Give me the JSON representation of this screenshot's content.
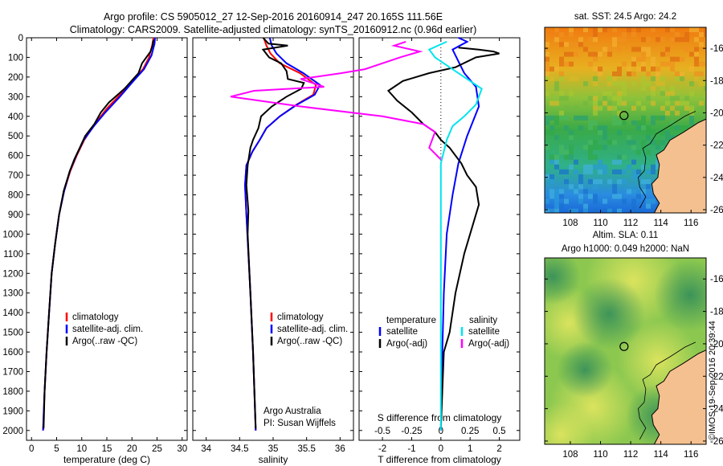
{
  "header": {
    "line1": "Argo profile: CS 5905012_27 12-Sep-2016 20160914_247 20.165S 111.56E",
    "line2": "Climatology: CARS2009. Satellite-adjusted climatology: synTS_20160912.nc (0.96d earlier)"
  },
  "footer": {
    "stamp": "©IMOS 19-Sep-2016 20:39:44"
  },
  "colors": {
    "climatology": "#ff0000",
    "satellite": "#0000ff",
    "argo": "#000000",
    "salinity_sat": "#00e5ee",
    "salinity_argo": "#ff00ff",
    "land": "#f5c08f"
  },
  "chart_data": [
    {
      "type": "line",
      "id": "temperature",
      "xlabel": "temperature (deg C)",
      "ylim": [
        2050,
        0
      ],
      "xlim": [
        -1,
        31
      ],
      "x_ticks": [
        "0",
        "5",
        "10",
        "15",
        "20",
        "25",
        "30"
      ],
      "y_ticks": [
        "0",
        "100",
        "200",
        "300",
        "400",
        "500",
        "600",
        "700",
        "800",
        "900",
        "1000",
        "1100",
        "1200",
        "1300",
        "1400",
        "1500",
        "1600",
        "1700",
        "1800",
        "1900",
        "2000"
      ],
      "legend": [
        "climatology",
        "satellite-adj. clim.",
        "Argo(..raw -QC)"
      ],
      "series": [
        {
          "name": "climatology",
          "points": [
            [
              24.3,
              0
            ],
            [
              24.0,
              40
            ],
            [
              23.4,
              100
            ],
            [
              22.2,
              160
            ],
            [
              20.4,
              210
            ],
            [
              18.0,
              280
            ],
            [
              15.0,
              360
            ],
            [
              12.6,
              440
            ],
            [
              10.5,
              520
            ],
            [
              9.0,
              600
            ],
            [
              7.7,
              680
            ],
            [
              6.5,
              780
            ],
            [
              5.5,
              900
            ],
            [
              4.7,
              1050
            ],
            [
              4.0,
              1200
            ],
            [
              3.5,
              1400
            ],
            [
              3.0,
              1600
            ],
            [
              2.6,
              1800
            ],
            [
              2.3,
              2000
            ]
          ]
        },
        {
          "name": "satellite-adj. clim.",
          "points": [
            [
              24.6,
              0
            ],
            [
              24.5,
              30
            ],
            [
              23.9,
              90
            ],
            [
              22.4,
              160
            ],
            [
              20.3,
              220
            ],
            [
              17.6,
              300
            ],
            [
              14.7,
              380
            ],
            [
              12.4,
              450
            ],
            [
              10.4,
              520
            ],
            [
              8.9,
              600
            ],
            [
              7.6,
              680
            ],
            [
              6.5,
              780
            ],
            [
              5.5,
              900
            ],
            [
              4.7,
              1050
            ],
            [
              4.0,
              1200
            ],
            [
              3.5,
              1400
            ],
            [
              3.0,
              1600
            ],
            [
              2.6,
              1800
            ],
            [
              2.3,
              2000
            ]
          ]
        },
        {
          "name": "Argo(..raw -QC)",
          "points": [
            [
              24.3,
              10
            ],
            [
              24.1,
              40
            ],
            [
              23.7,
              70
            ],
            [
              22.0,
              130
            ],
            [
              21.3,
              180
            ],
            [
              18.5,
              260
            ],
            [
              15.4,
              330
            ],
            [
              13.8,
              380
            ],
            [
              12.5,
              440
            ],
            [
              10.7,
              500
            ],
            [
              9.6,
              560
            ],
            [
              8.5,
              620
            ],
            [
              7.6,
              680
            ],
            [
              6.4,
              780
            ],
            [
              5.5,
              900
            ],
            [
              4.7,
              1050
            ],
            [
              4.0,
              1200
            ],
            [
              3.5,
              1400
            ],
            [
              3.0,
              1600
            ],
            [
              2.6,
              1800
            ],
            [
              2.4,
              1990
            ]
          ]
        }
      ]
    },
    {
      "type": "line",
      "id": "salinity",
      "xlabel": "salinity",
      "ylim": [
        2050,
        0
      ],
      "xlim": [
        33.8,
        36.2
      ],
      "x_ticks": [
        "34",
        "34.5",
        "35",
        "35.5",
        "36"
      ],
      "legend": [
        "climatology",
        "satellite-adj. clim.",
        "Argo(..raw -QC)"
      ],
      "annotations": [
        "Argo Australia",
        "PI: Susan Wijffels"
      ],
      "series": [
        {
          "name": "climatology",
          "points": [
            [
              34.86,
              0
            ],
            [
              34.9,
              40
            ],
            [
              34.96,
              80
            ],
            [
              35.1,
              130
            ],
            [
              35.4,
              180
            ],
            [
              35.64,
              240
            ],
            [
              35.6,
              290
            ],
            [
              35.35,
              340
            ],
            [
              35.1,
              400
            ],
            [
              34.9,
              460
            ],
            [
              34.8,
              520
            ],
            [
              34.69,
              580
            ],
            [
              34.6,
              650
            ],
            [
              34.58,
              750
            ],
            [
              34.6,
              900
            ],
            [
              34.63,
              1100
            ],
            [
              34.66,
              1300
            ],
            [
              34.7,
              1600
            ],
            [
              34.74,
              2000
            ]
          ]
        },
        {
          "name": "satellite-adj. clim.",
          "points": [
            [
              34.95,
              0
            ],
            [
              34.98,
              40
            ],
            [
              35.05,
              80
            ],
            [
              35.2,
              130
            ],
            [
              35.45,
              180
            ],
            [
              35.7,
              240
            ],
            [
              35.62,
              290
            ],
            [
              35.36,
              340
            ],
            [
              35.1,
              400
            ],
            [
              34.9,
              460
            ],
            [
              34.8,
              520
            ],
            [
              34.69,
              580
            ],
            [
              34.6,
              650
            ],
            [
              34.58,
              750
            ],
            [
              34.6,
              900
            ],
            [
              34.63,
              1100
            ],
            [
              34.66,
              1300
            ],
            [
              34.7,
              1600
            ],
            [
              34.74,
              2000
            ]
          ]
        },
        {
          "name": "Argo(..raw -QC)",
          "points": [
            [
              34.85,
              0
            ],
            [
              34.93,
              30
            ],
            [
              35.22,
              40
            ],
            [
              34.85,
              60
            ],
            [
              34.94,
              100
            ],
            [
              35.12,
              130
            ],
            [
              35.2,
              170
            ],
            [
              35.22,
              210
            ],
            [
              35.46,
              230
            ],
            [
              35.42,
              260
            ],
            [
              35.2,
              300
            ],
            [
              34.98,
              350
            ],
            [
              34.82,
              400
            ],
            [
              34.78,
              460
            ],
            [
              34.7,
              520
            ],
            [
              34.66,
              560
            ],
            [
              34.62,
              650
            ],
            [
              34.6,
              750
            ],
            [
              34.63,
              880
            ],
            [
              34.62,
              1000
            ],
            [
              34.66,
              1300
            ],
            [
              34.7,
              1600
            ],
            [
              34.74,
              1990
            ]
          ]
        }
      ]
    },
    {
      "type": "line",
      "id": "difference",
      "xlabel_top": "S difference from climatology",
      "xlabel": "T difference from climatology",
      "ylim": [
        2050,
        0
      ],
      "xlim": [
        -2.8,
        2.7
      ],
      "x_ticks": [
        "-2",
        "-1",
        "0",
        "1",
        "2"
      ],
      "x_ticks_top": [
        "-0.5",
        "-0.25",
        "0",
        "0.25",
        "0.5"
      ],
      "legend_heads": [
        "temperature",
        "salinity"
      ],
      "legend": [
        "satellite",
        "Argo(-adj)",
        "satellite",
        "Argo(-adj)"
      ],
      "series": [
        {
          "name": "temperature satellite",
          "points": [
            [
              0.6,
              0
            ],
            [
              0.9,
              20
            ],
            [
              0.4,
              60
            ],
            [
              0.6,
              120
            ],
            [
              0.8,
              180
            ],
            [
              1.2,
              250
            ],
            [
              1.3,
              350
            ],
            [
              0.9,
              500
            ],
            [
              0.6,
              640
            ],
            [
              0.4,
              800
            ],
            [
              0.2,
              1000
            ],
            [
              0.1,
              1300
            ],
            [
              0.05,
              1600
            ],
            [
              0.0,
              2000
            ]
          ]
        },
        {
          "name": "temperature Argo(-adj)",
          "points": [
            [
              0.6,
              50
            ],
            [
              1.3,
              60
            ],
            [
              1.8,
              70
            ],
            [
              2.0,
              80
            ],
            [
              1.2,
              100
            ],
            [
              0.5,
              150
            ],
            [
              -0.4,
              180
            ],
            [
              -1.3,
              220
            ],
            [
              -1.8,
              270
            ],
            [
              -1.5,
              320
            ],
            [
              -1.0,
              380
            ],
            [
              -0.6,
              440
            ],
            [
              -0.2,
              480
            ],
            [
              0.0,
              520
            ],
            [
              0.3,
              560
            ],
            [
              0.7,
              640
            ],
            [
              0.9,
              700
            ],
            [
              1.2,
              760
            ],
            [
              1.3,
              850
            ],
            [
              1.1,
              950
            ],
            [
              0.8,
              1100
            ],
            [
              0.5,
              1300
            ],
            [
              0.3,
              1500
            ],
            [
              0.1,
              1600
            ],
            [
              0.05,
              1800
            ],
            [
              0.0,
              1990
            ]
          ]
        },
        {
          "name": "salinity satellite",
          "points": [
            [
              0.05,
              20
            ],
            [
              -0.1,
              60
            ],
            [
              -0.05,
              100
            ],
            [
              0.2,
              200
            ],
            [
              0.35,
              260
            ],
            [
              0.3,
              340
            ],
            [
              0.2,
              400
            ],
            [
              0.1,
              450
            ],
            [
              0.05,
              520
            ],
            [
              0.0,
              640
            ],
            [
              0.0,
              2000
            ]
          ]
        },
        {
          "name": "salinity Argo(-adj)",
          "points": [
            [
              -0.3,
              20
            ],
            [
              -0.4,
              40
            ],
            [
              -0.18,
              70
            ],
            [
              -0.35,
              100
            ],
            [
              -0.65,
              160
            ],
            [
              -0.85,
              180
            ],
            [
              -1.2,
              210
            ],
            [
              -1.0,
              250
            ],
            [
              -1.6,
              270
            ],
            [
              -1.8,
              300
            ],
            [
              -1.2,
              350
            ],
            [
              -0.5,
              400
            ],
            [
              -0.15,
              440
            ],
            [
              -0.05,
              480
            ],
            [
              -0.1,
              560
            ],
            [
              0.0,
              620
            ]
          ]
        }
      ]
    },
    {
      "type": "heatmap",
      "id": "sst_map",
      "title": "sat. SST: 24.5 Argo: 24.2",
      "x_ticks": [
        "108",
        "110",
        "112",
        "114",
        "116"
      ],
      "y_ticks": [
        "-16",
        "-18",
        "-20",
        "-22",
        "-24",
        "-26"
      ],
      "xlim": [
        106.3,
        117.0
      ],
      "ylim": [
        -26.2,
        -14.7
      ],
      "marker": [
        111.56,
        -20.165
      ]
    },
    {
      "type": "heatmap",
      "id": "sla_map",
      "title": "Altim. SLA: 0.11",
      "subtitle": "Argo h1000: 0.049 h2000: NaN",
      "x_ticks": [
        "108",
        "110",
        "112",
        "114",
        "116"
      ],
      "y_ticks": [
        "-16",
        "-18",
        "-20",
        "-22",
        "-24",
        "-26"
      ],
      "xlim": [
        106.3,
        117.0
      ],
      "ylim": [
        -26.2,
        -14.7
      ],
      "marker": [
        111.56,
        -20.165
      ]
    }
  ]
}
